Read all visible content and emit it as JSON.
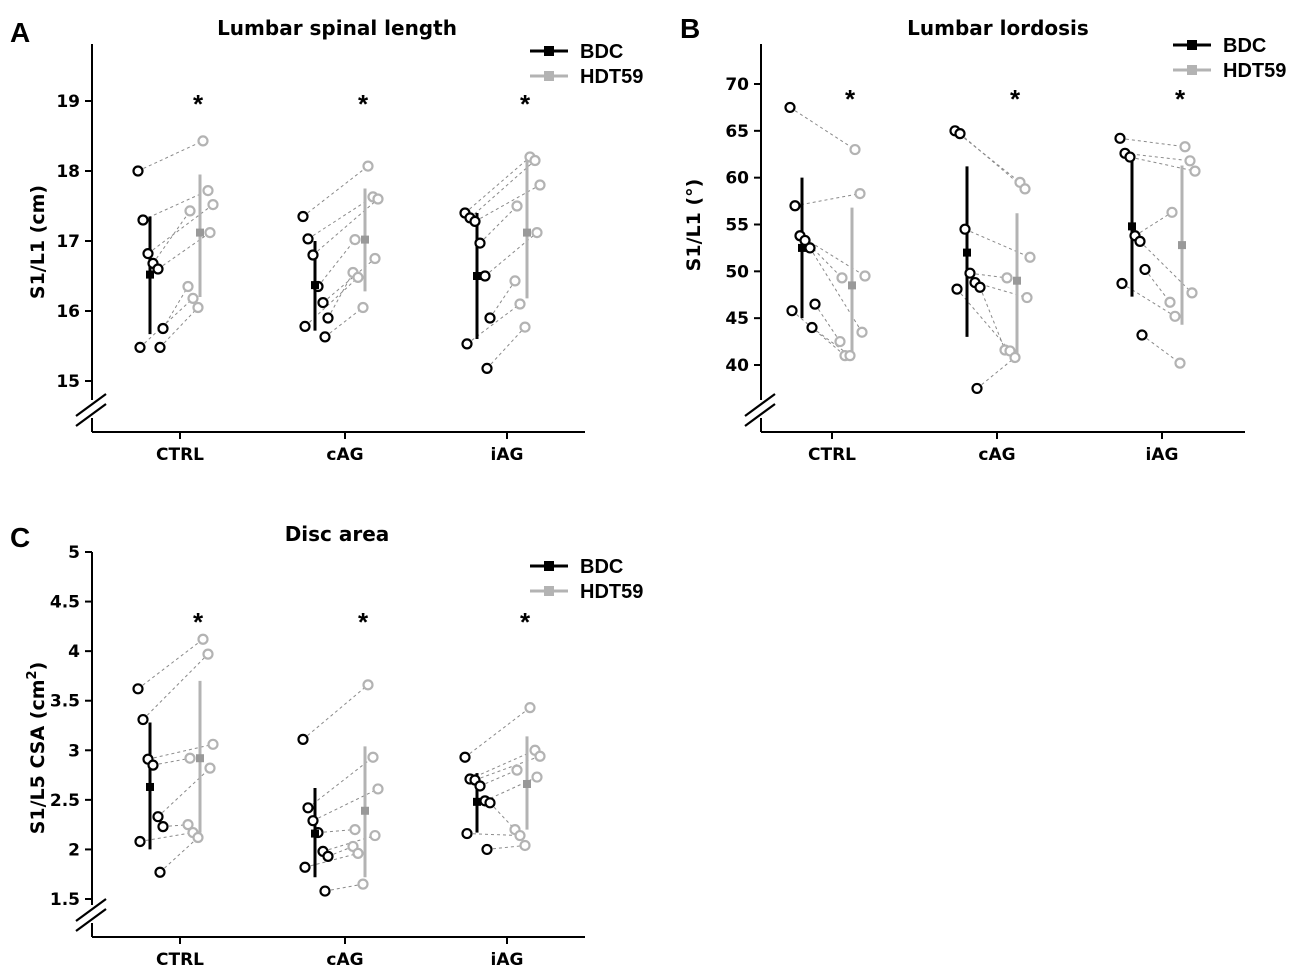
{
  "colors": {
    "bdc": "#000000",
    "hdt": "#b3b3b3",
    "pair_line": "#8a8a8a",
    "axis": "#000000"
  },
  "chart_data": [
    {
      "id": "A",
      "panel_label": "A",
      "type": "scatter",
      "title": "Lumbar spinal length",
      "ylabel": "S1/L1 (cm)",
      "ylabel_sup": "",
      "ylabel_tail": "",
      "xlabel": "",
      "categories": [
        "CTRL",
        "cAG",
        "iAG"
      ],
      "ylim": [
        14.3,
        19.9
      ],
      "yticks": [
        15,
        16,
        17,
        18,
        19
      ],
      "ytick_labels": [
        "15",
        "16",
        "17",
        "18",
        "19"
      ],
      "axis_break": true,
      "legend": {
        "placement": "top-right",
        "entries": [
          "BDC",
          "HDT59"
        ]
      },
      "significance": [
        "*",
        "*",
        "*"
      ],
      "groups": [
        {
          "category": "CTRL",
          "bdc": [
            18.0,
            17.3,
            16.82,
            16.68,
            16.6,
            15.75,
            15.48,
            15.48
          ],
          "hdt": [
            18.43,
            17.72,
            17.52,
            17.43,
            17.12,
            16.35,
            16.18,
            16.05
          ],
          "bdc_mean": 16.52,
          "bdc_sd": [
            15.67,
            17.35
          ],
          "hdt_mean": 17.12,
          "hdt_sd": [
            16.2,
            17.95
          ]
        },
        {
          "category": "cAG",
          "bdc": [
            17.35,
            17.03,
            16.8,
            16.35,
            16.12,
            15.9,
            15.78,
            15.63
          ],
          "hdt": [
            18.07,
            17.63,
            17.6,
            17.02,
            16.75,
            16.55,
            16.48,
            16.05
          ],
          "bdc_mean": 16.37,
          "bdc_sd": [
            15.72,
            17.0
          ],
          "hdt_mean": 17.02,
          "hdt_sd": [
            16.28,
            17.75
          ]
        },
        {
          "category": "iAG",
          "bdc": [
            17.4,
            17.33,
            17.28,
            16.97,
            16.5,
            15.9,
            15.53,
            15.18
          ],
          "hdt": [
            18.2,
            18.15,
            17.8,
            17.5,
            17.12,
            16.43,
            16.1,
            15.77
          ],
          "bdc_mean": 16.5,
          "bdc_sd": [
            15.6,
            17.4
          ],
          "hdt_mean": 17.12,
          "hdt_sd": [
            16.18,
            18.18
          ]
        }
      ]
    },
    {
      "id": "B",
      "panel_label": "B",
      "type": "scatter",
      "title": "Lumbar lordosis",
      "ylabel": "S1/L1 (°)",
      "ylabel_sup": "",
      "ylabel_tail": "",
      "xlabel": "",
      "categories": [
        "CTRL",
        "cAG",
        "iAG"
      ],
      "ylim": [
        33.0,
        74.0
      ],
      "yticks": [
        40,
        45,
        50,
        55,
        60,
        65,
        70
      ],
      "ytick_labels": [
        "40",
        "45",
        "50",
        "55",
        "60",
        "65",
        "70"
      ],
      "axis_break": true,
      "legend": {
        "placement": "top-right",
        "entries": [
          "BDC",
          "HDT59"
        ]
      },
      "significance": [
        "*",
        "*",
        "*"
      ],
      "groups": [
        {
          "category": "CTRL",
          "bdc": [
            67.5,
            57.0,
            53.8,
            53.3,
            52.5,
            46.5,
            45.8,
            44.0
          ],
          "hdt": [
            63.0,
            58.3,
            49.5,
            49.3,
            43.5,
            42.5,
            41.0,
            41.0
          ],
          "bdc_mean": 52.5,
          "bdc_sd": [
            45.0,
            60.0
          ],
          "hdt_mean": 48.5,
          "hdt_sd": [
            40.5,
            56.8
          ]
        },
        {
          "category": "cAG",
          "bdc": [
            65.0,
            64.7,
            54.5,
            49.8,
            48.8,
            48.3,
            48.1,
            37.5
          ],
          "hdt": [
            59.5,
            58.8,
            51.5,
            49.3,
            47.2,
            41.6,
            41.5,
            40.8
          ],
          "bdc_mean": 52.0,
          "bdc_sd": [
            43.0,
            61.2
          ],
          "hdt_mean": 49.0,
          "hdt_sd": [
            41.0,
            56.2
          ]
        },
        {
          "category": "iAG",
          "bdc": [
            64.2,
            62.6,
            62.2,
            53.8,
            53.2,
            50.2,
            48.7,
            43.2
          ],
          "hdt": [
            63.3,
            61.8,
            60.7,
            56.3,
            47.7,
            46.7,
            45.2,
            40.2
          ],
          "bdc_mean": 54.8,
          "bdc_sd": [
            47.3,
            62.3
          ],
          "hdt_mean": 52.8,
          "hdt_sd": [
            44.3,
            61.3
          ]
        }
      ]
    },
    {
      "id": "C",
      "panel_label": "C",
      "type": "scatter",
      "title": "Disc area",
      "ylabel": "S1/L5 CSA (cm",
      "ylabel_sup": "2",
      "ylabel_tail": ")",
      "xlabel": "",
      "categories": [
        "CTRL",
        "cAG",
        "iAG"
      ],
      "ylim": [
        1.1,
        5.0
      ],
      "yticks": [
        1.5,
        2,
        2.5,
        3,
        3.5,
        4,
        4.5,
        5
      ],
      "ytick_labels": [
        "1.5",
        "2",
        "2.5",
        "3",
        "3.5",
        "4",
        "4.5",
        "5"
      ],
      "axis_break": true,
      "legend": {
        "placement": "top-right",
        "entries": [
          "BDC",
          "HDT59"
        ]
      },
      "significance": [
        "*",
        "*",
        "*"
      ],
      "groups": [
        {
          "category": "CTRL",
          "bdc": [
            3.62,
            3.31,
            2.91,
            2.85,
            2.33,
            2.23,
            2.08,
            1.77
          ],
          "hdt": [
            4.12,
            3.97,
            3.06,
            2.92,
            2.82,
            2.25,
            2.17,
            2.12
          ],
          "bdc_mean": 2.63,
          "bdc_sd": [
            2.0,
            3.28
          ],
          "hdt_mean": 2.92,
          "hdt_sd": [
            2.17,
            3.7
          ]
        },
        {
          "category": "cAG",
          "bdc": [
            3.11,
            2.42,
            2.29,
            2.17,
            1.98,
            1.93,
            1.82,
            1.58
          ],
          "hdt": [
            3.66,
            2.93,
            2.61,
            2.2,
            2.14,
            2.03,
            1.96,
            1.65
          ],
          "bdc_mean": 2.16,
          "bdc_sd": [
            1.72,
            2.62
          ],
          "hdt_mean": 2.39,
          "hdt_sd": [
            1.72,
            3.04
          ]
        },
        {
          "category": "iAG",
          "bdc": [
            2.93,
            2.71,
            2.7,
            2.64,
            2.49,
            2.47,
            2.16,
            2.0
          ],
          "hdt": [
            3.43,
            3.0,
            2.94,
            2.8,
            2.73,
            2.2,
            2.14,
            2.04
          ],
          "bdc_mean": 2.48,
          "bdc_sd": [
            2.17,
            2.77
          ],
          "hdt_mean": 2.66,
          "hdt_sd": [
            2.2,
            3.14
          ]
        }
      ]
    }
  ]
}
